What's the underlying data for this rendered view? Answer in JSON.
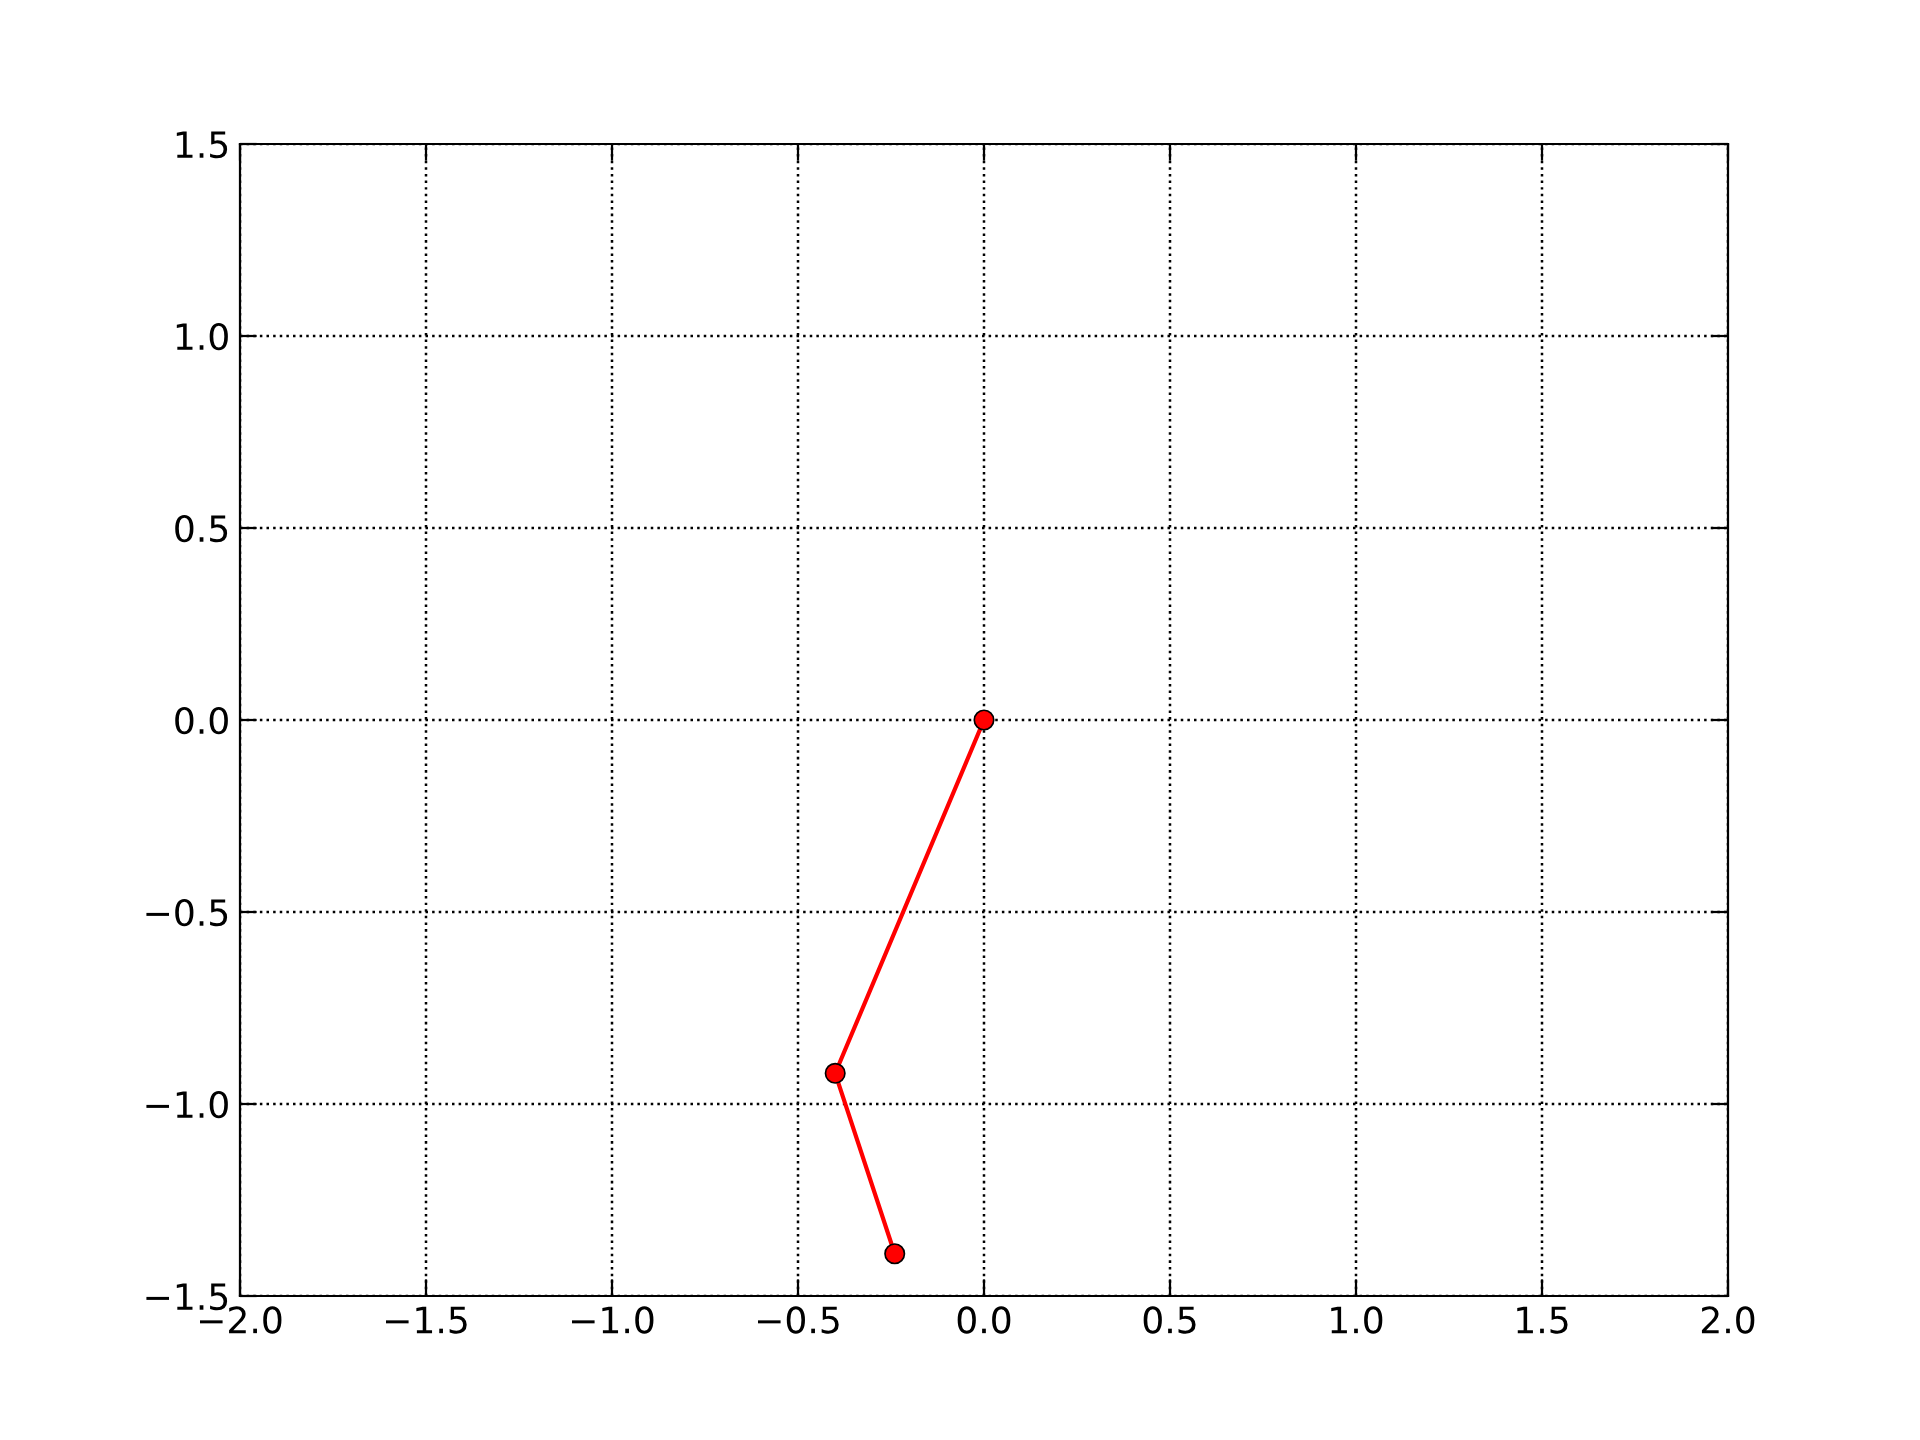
{
  "chart_data": {
    "type": "line",
    "x": [
      0.0,
      -0.4,
      -0.24
    ],
    "series": [
      {
        "color": "#ff0000",
        "values": [
          0.0,
          -0.92,
          -1.39
        ]
      }
    ],
    "xlim": [
      -2.0,
      2.0
    ],
    "xticks": [
      {
        "value": -2,
        "label": "−2.0"
      },
      {
        "value": -1.5,
        "label": "−1.5"
      },
      {
        "value": -1,
        "label": "−1.0"
      },
      {
        "value": -0.5,
        "label": "−0.5"
      },
      {
        "value": 0,
        "label": "0.0"
      },
      {
        "value": 0.5,
        "label": "0.5"
      },
      {
        "value": 1,
        "label": "1.0"
      },
      {
        "value": 1.5,
        "label": "1.5"
      },
      {
        "value": 2,
        "label": "2.0"
      }
    ],
    "ylim": [
      -1.5,
      1.5
    ],
    "yticks": [
      {
        "value": -1.5,
        "label": "−1.5"
      },
      {
        "value": -1,
        "label": "−1.0"
      },
      {
        "value": -0.5,
        "label": "−0.5"
      },
      {
        "value": 0,
        "label": "0.0"
      },
      {
        "value": 0.5,
        "label": "0.5"
      },
      {
        "value": 1,
        "label": "1.0"
      },
      {
        "value": 1.5,
        "label": "1.5"
      }
    ],
    "grid": true,
    "marker": "circle",
    "line_style": "solid",
    "legend": false
  }
}
